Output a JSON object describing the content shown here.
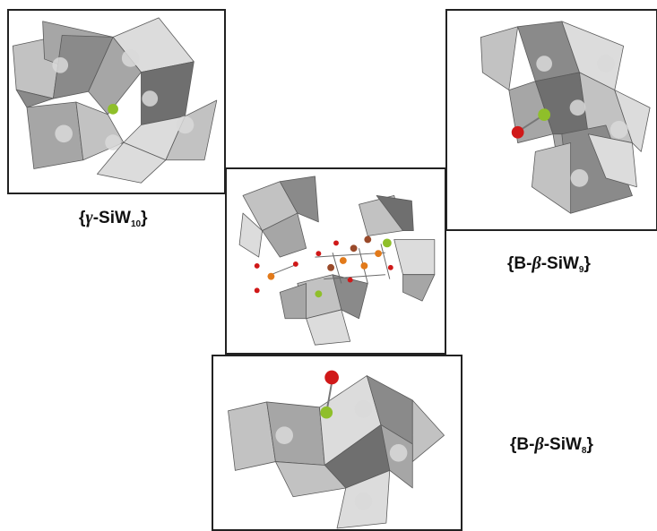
{
  "panels": [
    {
      "id": "gamma",
      "label_prefix": "{",
      "label_greek": "γ",
      "label_main": "-SiW",
      "label_sub": "10",
      "label_suffix": "}"
    },
    {
      "id": "b-beta-9",
      "label_prefix": "{B-",
      "label_greek": "β",
      "label_main": "-SiW",
      "label_sub": "9",
      "label_suffix": "}"
    },
    {
      "id": "b-beta-8",
      "label_prefix": "{B-",
      "label_greek": "β",
      "label_main": "-SiW",
      "label_sub": "8",
      "label_suffix": "}"
    }
  ],
  "colors": {
    "silicon": "#8fbf2a",
    "oxygen": "#d01818",
    "iron": "#e27a1a",
    "bridge": "#9a4a2a"
  }
}
